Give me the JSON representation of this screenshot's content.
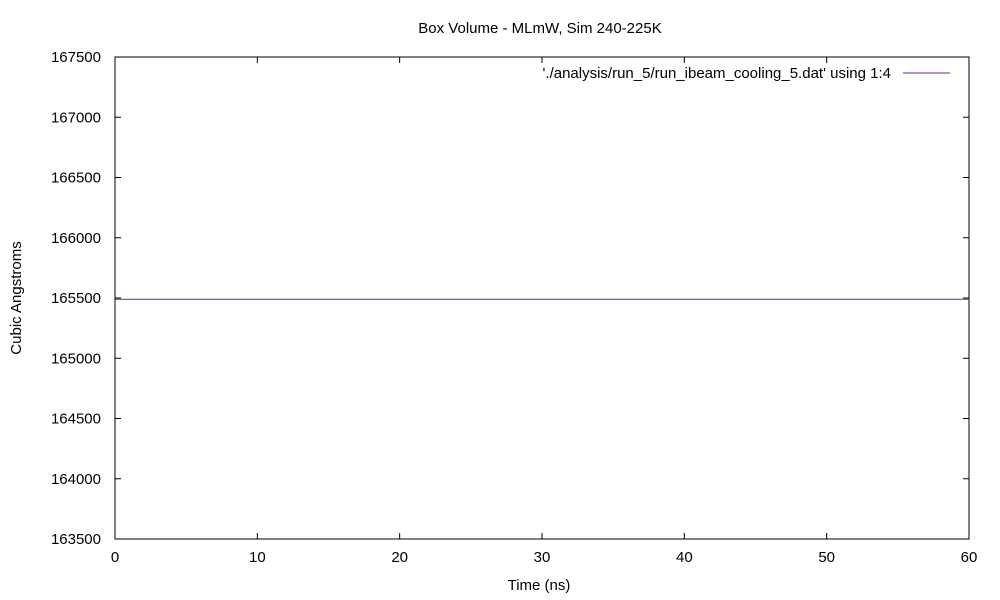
{
  "chart_data": {
    "type": "line",
    "title": "Box Volume - MLmW, Sim 240-225K",
    "xlabel": "Time (ns)",
    "ylabel": "Cubic Angstroms",
    "xlim": [
      0,
      60
    ],
    "ylim": [
      163500,
      167500
    ],
    "xticks": [
      0,
      10,
      20,
      30,
      40,
      50,
      60
    ],
    "yticks": [
      163500,
      164000,
      164500,
      165000,
      165500,
      166000,
      166500,
      167000,
      167500
    ],
    "grid": false,
    "legend_position": "top-right",
    "series": [
      {
        "name": "'./analysis/run_5/run_ibeam_cooling_5.dat' using 1:4",
        "color": "#7b1fa2",
        "x": [
          0,
          10,
          20,
          30,
          40,
          50,
          60
        ],
        "y": [
          165490,
          165490,
          165490,
          165490,
          165490,
          165490,
          165490
        ]
      }
    ]
  }
}
